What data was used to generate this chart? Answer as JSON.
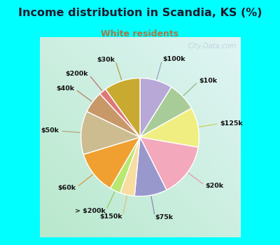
{
  "title": "Income distribution in Scandia, KS (%)",
  "subtitle": "White residents",
  "title_color": "#1a1a2e",
  "subtitle_color": "#aa7744",
  "bg_color": "#00ffff",
  "chart_bg_top_right": "#e8f8f8",
  "chart_bg_bottom_left": "#c8f0d8",
  "labels": [
    "$100k",
    "$10k",
    "$125k",
    "$20k",
    "$75k",
    "$150k",
    "> $200k",
    "$60k",
    "$50k",
    "$40k",
    "$200k",
    "$30k"
  ],
  "values": [
    9,
    8,
    11,
    15,
    9,
    4,
    3,
    12,
    12,
    6,
    2,
    10
  ],
  "colors": [
    "#b8a8d8",
    "#a8cc98",
    "#f0ee80",
    "#f4a8bc",
    "#9898cc",
    "#f8dca0",
    "#b8e870",
    "#f0a030",
    "#ccbc90",
    "#c89868",
    "#e07878",
    "#c8aa30"
  ],
  "watermark": "City-Data.com",
  "startangle": 90,
  "label_colors": [
    "#9090b8",
    "#88aa70",
    "#c8c840",
    "#e888a0",
    "#7878b0",
    "#e0b870",
    "#88c840",
    "#e08820",
    "#b09860",
    "#b07040",
    "#c05858",
    "#a89020"
  ]
}
